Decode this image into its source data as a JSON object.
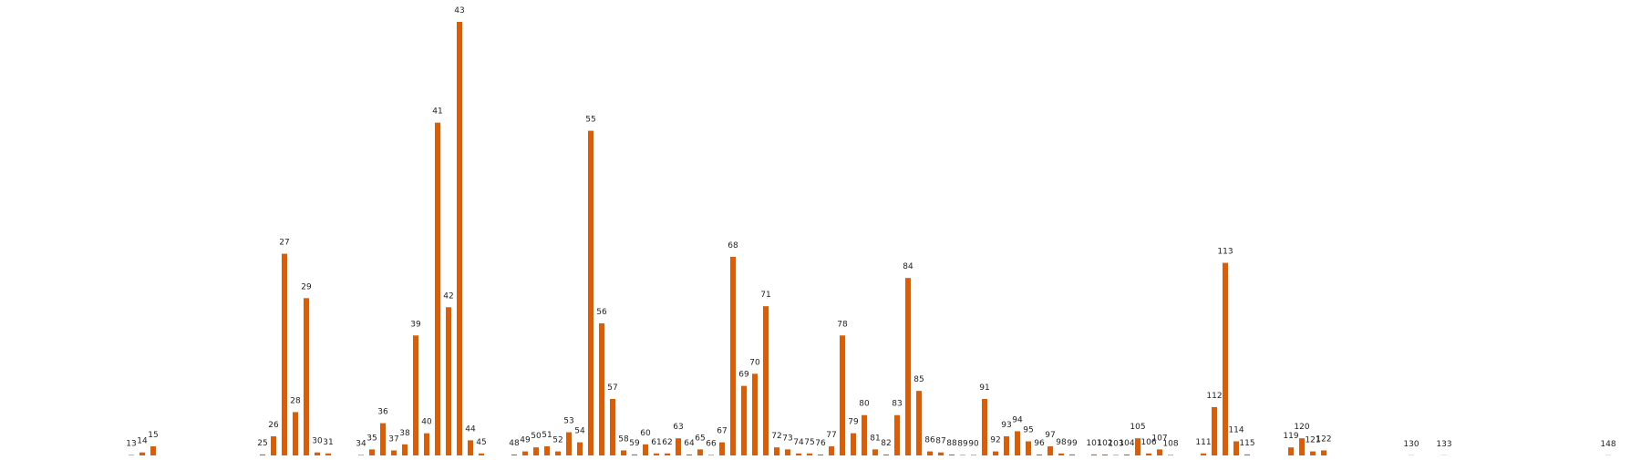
{
  "chart_data": {
    "type": "bar",
    "title": "",
    "xlabel": "",
    "ylabel": "",
    "grid": false,
    "axes_visible": false,
    "bar_color": "#d45f0d",
    "ylim": [
      0,
      43
    ],
    "x_range": [
      0,
      148
    ],
    "categories": [
      13,
      14,
      15,
      25,
      26,
      27,
      28,
      29,
      30,
      31,
      34,
      35,
      36,
      37,
      38,
      39,
      40,
      41,
      42,
      43,
      44,
      45,
      48,
      49,
      50,
      51,
      52,
      53,
      54,
      55,
      56,
      57,
      58,
      59,
      60,
      61,
      62,
      63,
      64,
      65,
      66,
      67,
      68,
      69,
      70,
      71,
      72,
      73,
      74,
      75,
      76,
      77,
      78,
      79,
      80,
      81,
      82,
      83,
      84,
      85,
      86,
      87,
      88,
      89,
      90,
      91,
      92,
      93,
      94,
      95,
      96,
      97,
      98,
      99,
      101,
      102,
      103,
      104,
      105,
      106,
      107,
      108,
      111,
      112,
      113,
      114,
      115,
      119,
      120,
      121,
      122,
      130,
      133,
      148
    ],
    "values": [
      0.05,
      0.3,
      0.9,
      0.1,
      1.9,
      20.0,
      4.3,
      15.6,
      0.3,
      0.2,
      0.05,
      0.6,
      3.2,
      0.5,
      1.1,
      11.9,
      2.2,
      33.0,
      14.7,
      43.0,
      1.5,
      0.2,
      0.1,
      0.4,
      0.8,
      0.9,
      0.4,
      2.3,
      1.3,
      32.2,
      13.1,
      5.6,
      0.5,
      0.1,
      1.1,
      0.2,
      0.2,
      1.7,
      0.1,
      0.6,
      0.05,
      1.3,
      19.7,
      6.9,
      8.1,
      14.8,
      0.8,
      0.6,
      0.2,
      0.2,
      0.1,
      0.9,
      11.9,
      2.2,
      4.0,
      0.6,
      0.1,
      4.0,
      17.6,
      6.4,
      0.4,
      0.3,
      0.1,
      0.05,
      0.05,
      5.6,
      0.4,
      1.9,
      2.4,
      1.4,
      0.1,
      0.9,
      0.2,
      0.1,
      0.1,
      0.1,
      0.05,
      0.1,
      1.7,
      0.2,
      0.6,
      0.05,
      0.2,
      4.8,
      19.1,
      1.4,
      0.1,
      0.8,
      1.7,
      0.4,
      0.5,
      0.02,
      0.02,
      0.02
    ]
  }
}
